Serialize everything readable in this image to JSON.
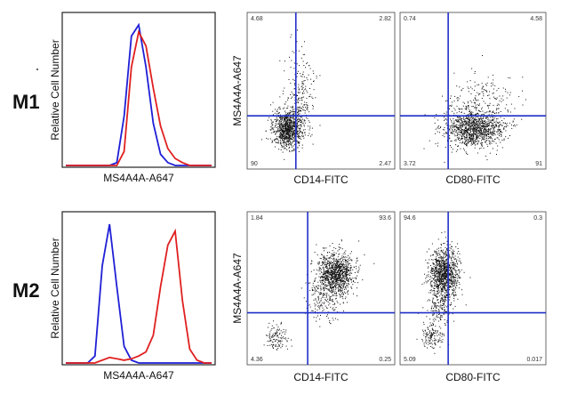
{
  "figure": {
    "rows": [
      {
        "label": "M1"
      },
      {
        "label": "M2"
      }
    ]
  },
  "chart_data": [
    {
      "type": "line",
      "panel": "M1 histogram",
      "xlabel": "MS4A4A-A647",
      "ylabel": "Relative Cell Number",
      "x": [
        0,
        5,
        10,
        15,
        20,
        25,
        30,
        35,
        40,
        45,
        50,
        55,
        60,
        65,
        70,
        75,
        80,
        85,
        90,
        95,
        100
      ],
      "series": [
        {
          "color": "#1f1fd6",
          "values": [
            0,
            0,
            0,
            0,
            0,
            0,
            0,
            0.02,
            0.35,
            0.92,
            1.0,
            0.7,
            0.3,
            0.08,
            0.02,
            0,
            0,
            0,
            0,
            0,
            0
          ]
        },
        {
          "color": "#e02020",
          "values": [
            0,
            0,
            0,
            0,
            0,
            0,
            0,
            0,
            0.1,
            0.7,
            0.95,
            0.85,
            0.55,
            0.28,
            0.12,
            0.05,
            0.02,
            0,
            0,
            0,
            0
          ]
        }
      ]
    },
    {
      "type": "scatter",
      "panel": "M1 CD14",
      "xlabel": "CD14-FITC",
      "ylabel": "MS4A4A-A647",
      "quadrants": {
        "ul": "4.68",
        "ur": "2.82",
        "ll": "90",
        "lr": "2.47"
      }
    },
    {
      "type": "scatter",
      "panel": "M1 CD80",
      "xlabel": "CD80-FITC",
      "ylabel": "",
      "quadrants": {
        "ul": "0.74",
        "ur": "4.58",
        "ll": "3.72",
        "lr": "91"
      }
    },
    {
      "type": "line",
      "panel": "M2 histogram",
      "xlabel": "MS4A4A-A647",
      "ylabel": "Relative Cell Number",
      "x": [
        0,
        5,
        10,
        15,
        20,
        25,
        30,
        35,
        40,
        45,
        50,
        55,
        60,
        65,
        70,
        75,
        80,
        85,
        90,
        95,
        100
      ],
      "series": [
        {
          "color": "#1f1fd6",
          "values": [
            0,
            0,
            0,
            0,
            0.05,
            0.7,
            1.0,
            0.55,
            0.12,
            0.02,
            0,
            0,
            0,
            0,
            0,
            0,
            0,
            0,
            0,
            0,
            0
          ]
        },
        {
          "color": "#e02020",
          "values": [
            0,
            0,
            0,
            0,
            0,
            0.02,
            0.04,
            0.03,
            0.02,
            0.03,
            0.05,
            0.08,
            0.2,
            0.55,
            0.85,
            0.95,
            0.45,
            0.1,
            0.02,
            0,
            0
          ]
        }
      ]
    },
    {
      "type": "scatter",
      "panel": "M2 CD14",
      "xlabel": "CD14-FITC",
      "ylabel": "MS4A4A-A647",
      "quadrants": {
        "ul": "1.84",
        "ur": "93.6",
        "ll": "4.36",
        "lr": "0.25"
      }
    },
    {
      "type": "scatter",
      "panel": "M2 CD80",
      "xlabel": "CD80-FITC",
      "ylabel": "",
      "quadrants": {
        "ul": "94.6",
        "ur": "0.3",
        "ll": "5.09",
        "lr": "0.017"
      }
    }
  ]
}
